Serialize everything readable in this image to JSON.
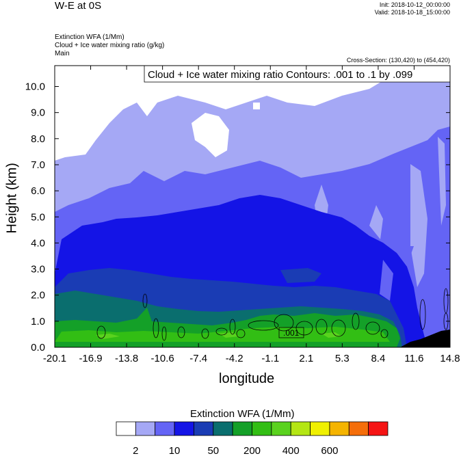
{
  "header": {
    "title": "W-E at 0S",
    "init": "Init: 2018-10-12_00:00:00",
    "valid": "Valid: 2018-10-18_15:00:00",
    "fields": [
      "Extinction WFA   (1/Mm)",
      "Cloud + Ice water mixing ratio   (g/kg)",
      "Main"
    ],
    "cross_section": "Cross-Section: (130,420) to (454,420)"
  },
  "chart_data": {
    "type": "heatmap",
    "title": "W-E at 0S",
    "xlabel": "longitude",
    "ylabel": "Height (km)",
    "xlim": [
      -20.1,
      14.8
    ],
    "ylim": [
      0.0,
      10.8
    ],
    "xticks": [
      "-20.1",
      "-16.9",
      "-13.8",
      "-10.6",
      "-7.4",
      "-4.2",
      "-1.1",
      "2.1",
      "5.3",
      "8.4",
      "11.6",
      "14.8"
    ],
    "yticks": [
      "0.0",
      "1.0",
      "2.0",
      "3.0",
      "4.0",
      "5.0",
      "6.0",
      "7.0",
      "8.0",
      "9.0",
      "10.0"
    ],
    "contour_label": "Cloud + Ice water mixing ratio Contours: .001 to .1 by .099",
    "contour_value_label": ".001",
    "colorbar": {
      "title": "Extinction WFA  (1/Mm)",
      "labels": [
        "2",
        "10",
        "50",
        "200",
        "400",
        "600"
      ],
      "colors": [
        "#ffffff",
        "#a5a8f5",
        "#6464f5",
        "#1414e6",
        "#1a3cb4",
        "#0a6e6e",
        "#14a028",
        "#32be14",
        "#5ad21e",
        "#b4e614",
        "#f0f000",
        "#f5b400",
        "#f56e0a",
        "#f51414"
      ]
    }
  }
}
